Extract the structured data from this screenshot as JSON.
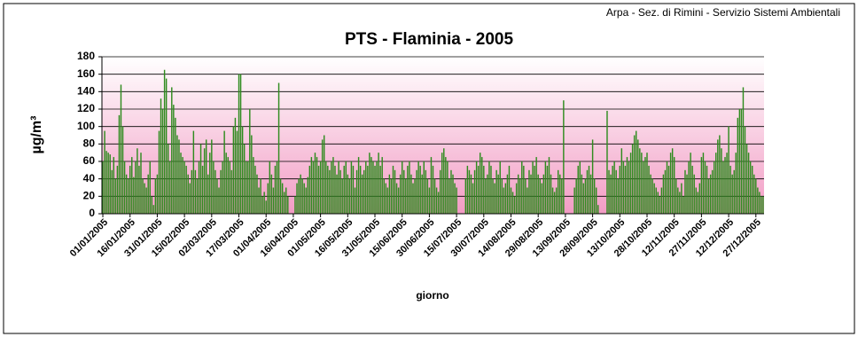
{
  "chart_data": {
    "type": "bar",
    "source": "Arpa - Sez. di Rimini - Servizio Sistemi Ambientali",
    "title": "PTS - Flaminia - 2005",
    "y_label": "µg/m³",
    "x_label": "giorno",
    "color": "#2e8b1e",
    "grid": true,
    "ylim": [
      0,
      180
    ],
    "yticks": [
      0,
      20,
      40,
      60,
      80,
      100,
      120,
      140,
      160,
      180
    ],
    "categories": [
      "01/01/2005",
      null,
      null,
      null,
      null,
      null,
      null,
      null,
      null,
      null,
      null,
      null,
      null,
      null,
      null,
      "16/01/2005",
      null,
      null,
      null,
      null,
      null,
      null,
      null,
      null,
      null,
      null,
      null,
      null,
      null,
      null,
      "31/01/2005",
      null,
      null,
      null,
      null,
      null,
      null,
      null,
      null,
      null,
      null,
      null,
      null,
      null,
      null,
      "15/02/2005",
      null,
      null,
      null,
      null,
      null,
      null,
      null,
      null,
      null,
      null,
      null,
      null,
      null,
      null,
      "02/03/2005",
      null,
      null,
      null,
      null,
      null,
      null,
      null,
      null,
      null,
      null,
      null,
      null,
      null,
      null,
      "17/03/2005",
      null,
      null,
      null,
      null,
      null,
      null,
      null,
      null,
      null,
      null,
      null,
      null,
      null,
      null,
      "01/04/2005",
      null,
      null,
      null,
      null,
      null,
      null,
      null,
      null,
      null,
      null,
      null,
      null,
      null,
      null,
      "16/04/2005",
      null,
      null,
      null,
      null,
      null,
      null,
      null,
      null,
      null,
      null,
      null,
      null,
      null,
      null,
      "01/05/2005",
      null,
      null,
      null,
      null,
      null,
      null,
      null,
      null,
      null,
      null,
      null,
      null,
      null,
      null,
      "16/05/2005",
      null,
      null,
      null,
      null,
      null,
      null,
      null,
      null,
      null,
      null,
      null,
      null,
      null,
      null,
      "31/05/2005",
      null,
      null,
      null,
      null,
      null,
      null,
      null,
      null,
      null,
      null,
      null,
      null,
      null,
      null,
      "15/06/2005",
      null,
      null,
      null,
      null,
      null,
      null,
      null,
      null,
      null,
      null,
      null,
      null,
      null,
      null,
      "30/06/2005",
      null,
      null,
      null,
      null,
      null,
      null,
      null,
      null,
      null,
      null,
      null,
      null,
      null,
      null,
      "15/07/2005",
      null,
      null,
      null,
      null,
      null,
      null,
      null,
      null,
      null,
      null,
      null,
      null,
      null,
      null,
      "30/07/2005",
      null,
      null,
      null,
      null,
      null,
      null,
      null,
      null,
      null,
      null,
      null,
      null,
      null,
      null,
      "14/08/2005",
      null,
      null,
      null,
      null,
      null,
      null,
      null,
      null,
      null,
      null,
      null,
      null,
      null,
      null,
      "29/08/2005",
      null,
      null,
      null,
      null,
      null,
      null,
      null,
      null,
      null,
      null,
      null,
      null,
      null,
      null,
      "13/09/2005",
      null,
      null,
      null,
      null,
      null,
      null,
      null,
      null,
      null,
      null,
      null,
      null,
      null,
      null,
      "28/09/2005",
      null,
      null,
      null,
      null,
      null,
      null,
      null,
      null,
      null,
      null,
      null,
      null,
      null,
      null,
      "13/10/2005",
      null,
      null,
      null,
      null,
      null,
      null,
      null,
      null,
      null,
      null,
      null,
      null,
      null,
      null,
      "28/10/2005",
      null,
      null,
      null,
      null,
      null,
      null,
      null,
      null,
      null,
      null,
      null,
      null,
      null,
      null,
      "12/11/2005",
      null,
      null,
      null,
      null,
      null,
      null,
      null,
      null,
      null,
      null,
      null,
      null,
      null,
      null,
      "27/11/2005",
      null,
      null,
      null,
      null,
      null,
      null,
      null,
      null,
      null,
      null,
      null,
      null,
      null,
      null,
      "12/12/2005",
      null,
      null,
      null,
      null,
      null,
      null,
      null,
      null,
      null,
      null,
      null,
      null,
      null,
      null,
      "27/12/2005",
      null,
      null,
      null,
      null
    ],
    "values": [
      60,
      95,
      72,
      70,
      68,
      50,
      65,
      40,
      55,
      113,
      148,
      100,
      60,
      45,
      40,
      55,
      65,
      42,
      60,
      75,
      55,
      70,
      40,
      35,
      30,
      45,
      60,
      20,
      10,
      40,
      45,
      95,
      132,
      120,
      165,
      155,
      80,
      60,
      145,
      125,
      110,
      90,
      85,
      70,
      65,
      60,
      55,
      45,
      35,
      50,
      95,
      50,
      40,
      60,
      80,
      55,
      75,
      85,
      45,
      70,
      85,
      60,
      50,
      40,
      30,
      50,
      60,
      95,
      70,
      65,
      60,
      50,
      100,
      110,
      95,
      160,
      160,
      100,
      80,
      60,
      60,
      120,
      90,
      65,
      55,
      45,
      30,
      40,
      20,
      25,
      15,
      35,
      60,
      45,
      30,
      55,
      60,
      150,
      40,
      35,
      25,
      30,
      20,
      null,
      null,
      null,
      20,
      35,
      40,
      45,
      40,
      35,
      30,
      42,
      55,
      65,
      60,
      70,
      65,
      55,
      60,
      85,
      90,
      60,
      55,
      50,
      60,
      65,
      55,
      45,
      60,
      50,
      40,
      55,
      60,
      45,
      40,
      60,
      55,
      30,
      50,
      65,
      55,
      45,
      50,
      60,
      55,
      70,
      65,
      60,
      55,
      60,
      70,
      55,
      65,
      40,
      35,
      30,
      45,
      40,
      55,
      50,
      35,
      30,
      45,
      60,
      50,
      40,
      55,
      60,
      45,
      35,
      40,
      50,
      60,
      55,
      45,
      60,
      50,
      40,
      30,
      65,
      55,
      40,
      30,
      25,
      50,
      70,
      75,
      65,
      60,
      40,
      50,
      45,
      35,
      30,
      null,
      null,
      null,
      null,
      40,
      55,
      50,
      45,
      35,
      50,
      60,
      55,
      70,
      65,
      55,
      40,
      45,
      60,
      55,
      40,
      35,
      50,
      45,
      60,
      40,
      30,
      35,
      45,
      55,
      30,
      25,
      20,
      35,
      45,
      40,
      60,
      55,
      40,
      30,
      50,
      45,
      60,
      55,
      65,
      45,
      40,
      35,
      45,
      60,
      55,
      65,
      45,
      30,
      25,
      30,
      50,
      45,
      40,
      130,
      null,
      null,
      null,
      null,
      null,
      30,
      40,
      55,
      60,
      45,
      35,
      40,
      50,
      55,
      45,
      85,
      40,
      30,
      10,
      null,
      null,
      null,
      null,
      118,
      50,
      45,
      55,
      60,
      50,
      40,
      55,
      75,
      60,
      55,
      65,
      60,
      70,
      80,
      90,
      95,
      85,
      75,
      70,
      60,
      65,
      70,
      55,
      45,
      40,
      35,
      30,
      25,
      20,
      30,
      45,
      50,
      60,
      55,
      70,
      75,
      65,
      40,
      30,
      25,
      35,
      20,
      50,
      45,
      60,
      70,
      55,
      45,
      30,
      25,
      35,
      65,
      70,
      60,
      55,
      40,
      45,
      50,
      60,
      70,
      85,
      90,
      75,
      60,
      65,
      70,
      100,
      55,
      45,
      50,
      70,
      110,
      120,
      120,
      145,
      100,
      80,
      70,
      60,
      55,
      45,
      40,
      30,
      25,
      20,
      20
    ]
  }
}
